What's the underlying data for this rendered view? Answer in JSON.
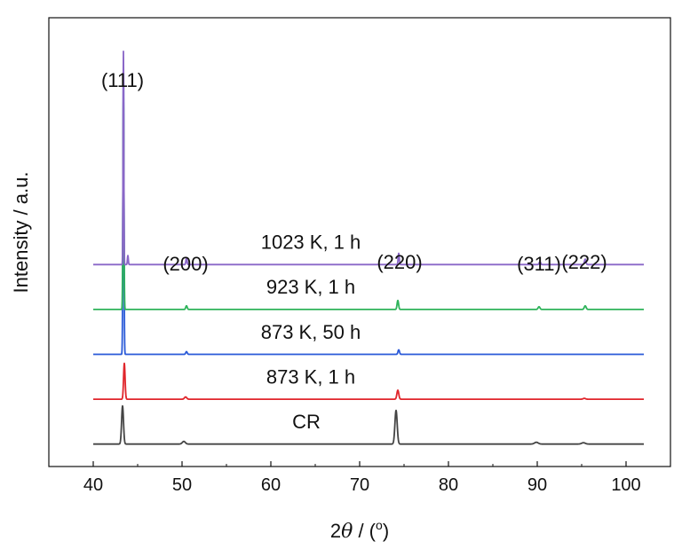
{
  "chart_data": {
    "type": "line",
    "title": "",
    "xlabel_parts": [
      "2",
      "θ",
      " / (",
      "o",
      ")"
    ],
    "ylabel": "Intensity / a.u.",
    "xlim": [
      35,
      105
    ],
    "ylim": [
      0,
      10
    ],
    "x_ticks": [
      40,
      50,
      60,
      70,
      80,
      90,
      100
    ],
    "y_ticks_shown": false,
    "grid": false,
    "legend": "none",
    "peak_labels": [
      {
        "text": "(111)",
        "x": 43.3
      },
      {
        "text": "(200)",
        "x": 50.4
      },
      {
        "text": "(220)",
        "x": 74.5
      },
      {
        "text": "(311)",
        "x": 90.2
      },
      {
        "text": "(222)",
        "x": 95.3
      }
    ],
    "series": [
      {
        "name": "CR",
        "color": "#444444",
        "baseline": 0.5,
        "x_range": [
          40,
          102
        ],
        "peaks": [
          {
            "x": 43.3,
            "height": 0.85,
            "width": 0.25
          },
          {
            "x": 50.2,
            "height": 0.06,
            "width": 0.4
          },
          {
            "x": 74.1,
            "height": 0.75,
            "width": 0.3
          },
          {
            "x": 89.9,
            "height": 0.04,
            "width": 0.5
          },
          {
            "x": 95.2,
            "height": 0.03,
            "width": 0.5
          }
        ]
      },
      {
        "name": "873 K, 1 h",
        "color": "#e0252b",
        "baseline": 1.5,
        "x_range": [
          40,
          102
        ],
        "peaks": [
          {
            "x": 43.5,
            "height": 0.8,
            "width": 0.2
          },
          {
            "x": 50.4,
            "height": 0.05,
            "width": 0.3
          },
          {
            "x": 74.3,
            "height": 0.2,
            "width": 0.25
          },
          {
            "x": 95.3,
            "height": 0.02,
            "width": 0.3
          }
        ]
      },
      {
        "name": "873 K, 50 h",
        "color": "#2a5ad8",
        "baseline": 2.5,
        "x_range": [
          40,
          102
        ],
        "peaks": [
          {
            "x": 43.4,
            "height": 6.4,
            "width": 0.13
          },
          {
            "x": 50.5,
            "height": 0.06,
            "width": 0.2
          },
          {
            "x": 74.4,
            "height": 0.1,
            "width": 0.2
          }
        ]
      },
      {
        "name": "923 K, 1 h",
        "color": "#2eb35a",
        "baseline": 3.5,
        "x_range": [
          40,
          102
        ],
        "peaks": [
          {
            "x": 43.4,
            "height": 4.8,
            "width": 0.13
          },
          {
            "x": 50.5,
            "height": 0.08,
            "width": 0.2
          },
          {
            "x": 74.3,
            "height": 0.2,
            "width": 0.2
          },
          {
            "x": 90.2,
            "height": 0.06,
            "width": 0.25
          },
          {
            "x": 95.4,
            "height": 0.08,
            "width": 0.25
          }
        ]
      },
      {
        "name": "1023 K, 1 h",
        "color": "#8a67c8",
        "baseline": 4.5,
        "x_range": [
          40,
          102
        ],
        "peaks": [
          {
            "x": 43.4,
            "height": 4.75,
            "width": 0.1
          },
          {
            "x": 43.9,
            "height": 0.2,
            "width": 0.12
          },
          {
            "x": 50.5,
            "height": 0.15,
            "width": 0.15
          },
          {
            "x": 74.4,
            "height": 0.25,
            "width": 0.15
          },
          {
            "x": 90.3,
            "height": 0.06,
            "width": 0.2
          },
          {
            "x": 95.4,
            "height": 0.12,
            "width": 0.2
          }
        ]
      }
    ],
    "series_labels": [
      {
        "text": "CR",
        "x": 64,
        "y": 0.85
      },
      {
        "text": "873 K, 1 h",
        "x": 64.5,
        "y": 1.85
      },
      {
        "text": "873 K, 50 h",
        "x": 64.5,
        "y": 2.85
      },
      {
        "text": "923 K, 1 h",
        "x": 64.5,
        "y": 3.85
      },
      {
        "text": "1023 K, 1 h",
        "x": 64.5,
        "y": 4.85
      }
    ]
  }
}
